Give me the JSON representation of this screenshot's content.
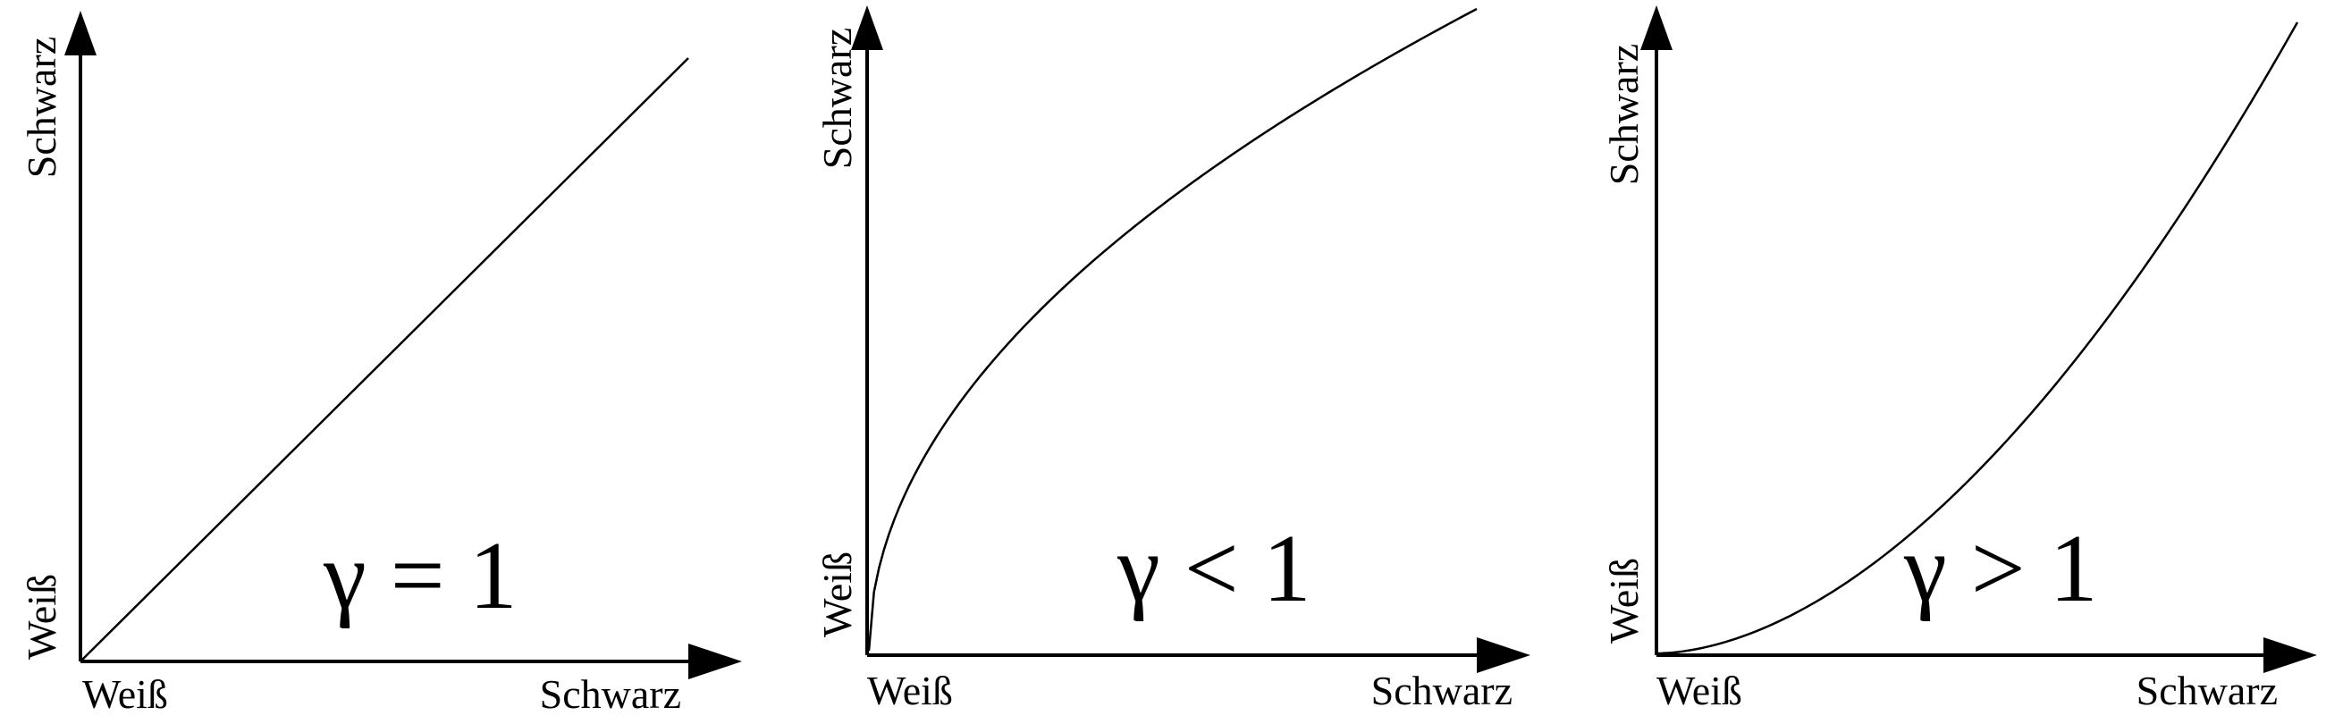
{
  "panels": [
    {
      "gamma_label": "γ = 1",
      "gamma": 1,
      "x_axis_start_label": "Weiß",
      "x_axis_end_label": "Schwarz",
      "y_axis_start_label": "Weiß",
      "y_axis_end_label": "Schwarz"
    },
    {
      "gamma_label": "γ < 1",
      "gamma": 0.5,
      "x_axis_start_label": "Weiß",
      "x_axis_end_label": "Schwarz",
      "y_axis_start_label": "Weiß",
      "y_axis_end_label": "Schwarz"
    },
    {
      "gamma_label": "γ > 1",
      "gamma": 1.8,
      "x_axis_start_label": "Weiß",
      "x_axis_end_label": "Schwarz",
      "y_axis_start_label": "Weiß",
      "y_axis_end_label": "Schwarz"
    }
  ],
  "colors": {
    "line": "#000000",
    "background": "#ffffff"
  }
}
